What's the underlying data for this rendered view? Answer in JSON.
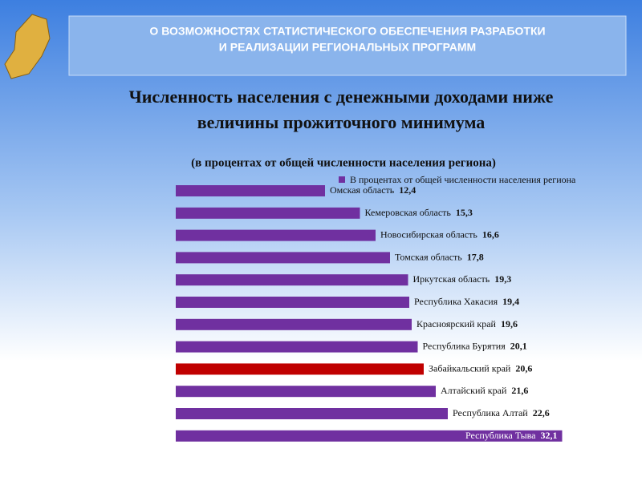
{
  "header": {
    "line1": "О ВОЗМОЖНОСТЯХ СТАТИСТИЧЕСКОГО ОБЕСПЕЧЕНИЯ РАЗРАБОТКИ",
    "line2": "И РЕАЛИЗАЦИИ РЕГИОНАЛЬНЫХ ПРОГРАММ"
  },
  "chart_data": {
    "type": "hbar",
    "title": [
      "Численность населения с денежными доходами ниже",
      "величины прожиточного минимума"
    ],
    "subtitle": "(в процентах от общей численности населения региона)",
    "series_name": "В процентах от общей численности населения региона",
    "categories": [
      "Омская область",
      "Кемеровская область",
      "Новосибирская область",
      "Томская область",
      "Иркутская область",
      "Республика Хакасия",
      "Красноярский край",
      "Республика Бурятия",
      "Забайкальский край",
      "Алтайский край",
      "Республика Алтай",
      "Республика Тыва"
    ],
    "values": [
      12.4,
      15.3,
      16.6,
      17.8,
      19.3,
      19.4,
      19.6,
      20.1,
      20.6,
      21.6,
      22.6,
      32.1
    ],
    "value_labels": [
      "12,4",
      "15,3",
      "16,6",
      "17,8",
      "19,3",
      "19,4",
      "19,6",
      "20,1",
      "20,6",
      "21,6",
      "22,6",
      "32,1"
    ],
    "colors": [
      "#7030a0",
      "#7030a0",
      "#7030a0",
      "#7030a0",
      "#7030a0",
      "#7030a0",
      "#7030a0",
      "#7030a0",
      "#c00000",
      "#7030a0",
      "#7030a0",
      "#7030a0"
    ],
    "xlim": [
      0,
      36
    ]
  }
}
